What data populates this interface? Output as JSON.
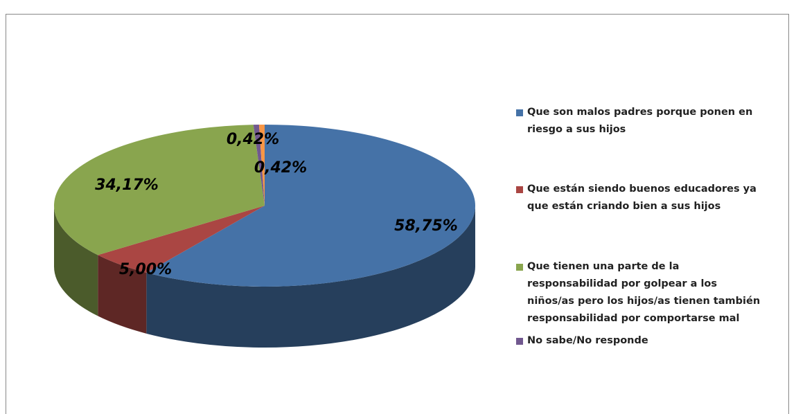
{
  "chart_data": {
    "type": "pie3d",
    "categories": [
      "Que son malos padres porque ponen en riesgo a sus hijos",
      "Que están siendo buenos educadores ya que están criando bien a sus hijos",
      "Que tienen una parte de la responsabilidad por golpear a los niños/as pero los hijos/as tienen también responsabilidad por comportarse mal",
      "No sabe/No responde",
      null
    ],
    "values": [
      58.75,
      5.0,
      34.17,
      0.42,
      0.42
    ],
    "value_labels": [
      "58,75%",
      "5,00%",
      "34,17%",
      "0,42%",
      "0,42%"
    ],
    "colors": [
      "#4572a7",
      "#aa4643",
      "#89a54e",
      "#71588f",
      "#f79646"
    ],
    "legend": "right"
  }
}
